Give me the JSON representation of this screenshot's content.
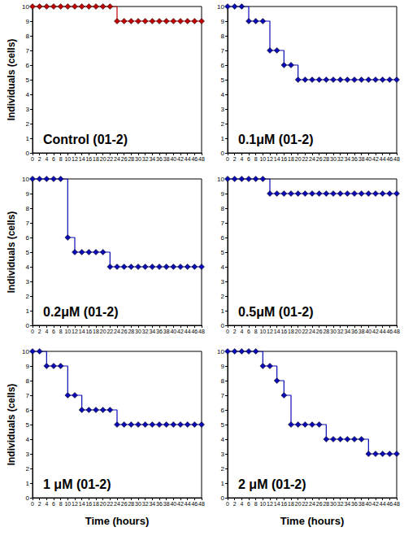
{
  "chart_data": [
    {
      "type": "line",
      "title": "Control (01-2)",
      "color": "#c00000",
      "marker": "diamond",
      "line_style": "step",
      "grid": false,
      "x": [
        0,
        2,
        4,
        6,
        8,
        10,
        12,
        14,
        16,
        18,
        20,
        22,
        24,
        26,
        28,
        30,
        32,
        34,
        36,
        38,
        40,
        42,
        44,
        46,
        48
      ],
      "values": [
        10,
        10,
        10,
        10,
        10,
        10,
        10,
        10,
        10,
        10,
        10,
        10,
        9,
        9,
        9,
        9,
        9,
        9,
        9,
        9,
        9,
        9,
        9,
        9,
        9
      ],
      "xlim": [
        0,
        48
      ],
      "xticks": [
        0,
        2,
        4,
        6,
        8,
        10,
        12,
        14,
        16,
        18,
        20,
        22,
        24,
        26,
        28,
        30,
        32,
        34,
        36,
        38,
        40,
        42,
        44,
        46,
        48
      ],
      "ylim": [
        0,
        10
      ],
      "yticks": [
        0,
        1,
        2,
        3,
        4,
        5,
        6,
        7,
        8,
        9,
        10
      ],
      "ylabel": "Individuals (cells)"
    },
    {
      "type": "line",
      "title": "0.1μM (01-2)",
      "color": "#0a0ab4",
      "marker": "diamond",
      "line_style": "step",
      "grid": false,
      "x": [
        0,
        2,
        4,
        6,
        8,
        10,
        12,
        14,
        16,
        18,
        20,
        22,
        24,
        26,
        28,
        30,
        32,
        34,
        36,
        38,
        40,
        42,
        44,
        46,
        48
      ],
      "values": [
        10,
        10,
        10,
        9,
        9,
        9,
        7,
        7,
        6,
        6,
        5,
        5,
        5,
        5,
        5,
        5,
        5,
        5,
        5,
        5,
        5,
        5,
        5,
        5,
        5
      ],
      "xlim": [
        0,
        48
      ],
      "xticks": [
        0,
        2,
        4,
        6,
        8,
        10,
        12,
        14,
        16,
        18,
        20,
        22,
        24,
        26,
        28,
        30,
        32,
        34,
        36,
        38,
        40,
        42,
        44,
        46,
        48
      ],
      "ylim": [
        0,
        10
      ],
      "yticks": [
        0,
        1,
        2,
        3,
        4,
        5,
        6,
        7,
        8,
        9,
        10
      ]
    },
    {
      "type": "line",
      "title": "0.2μM (01-2)",
      "color": "#0a0ab4",
      "marker": "diamond",
      "line_style": "step",
      "grid": false,
      "x": [
        0,
        2,
        4,
        6,
        8,
        10,
        12,
        14,
        16,
        18,
        20,
        22,
        24,
        26,
        28,
        30,
        32,
        34,
        36,
        38,
        40,
        42,
        44,
        46,
        48
      ],
      "values": [
        10,
        10,
        10,
        10,
        10,
        6,
        5,
        5,
        5,
        5,
        5,
        4,
        4,
        4,
        4,
        4,
        4,
        4,
        4,
        4,
        4,
        4,
        4,
        4,
        4
      ],
      "xlim": [
        0,
        48
      ],
      "xticks": [
        0,
        2,
        4,
        6,
        8,
        10,
        12,
        14,
        16,
        18,
        20,
        22,
        24,
        26,
        28,
        30,
        32,
        34,
        36,
        38,
        40,
        42,
        44,
        46,
        48
      ],
      "ylim": [
        0,
        10
      ],
      "yticks": [
        0,
        1,
        2,
        3,
        4,
        5,
        6,
        7,
        8,
        9,
        10
      ],
      "ylabel": "Individuals (cells)"
    },
    {
      "type": "line",
      "title": "0.5μM (01-2)",
      "color": "#0a0ab4",
      "marker": "diamond",
      "line_style": "step",
      "grid": false,
      "x": [
        0,
        2,
        4,
        6,
        8,
        10,
        12,
        14,
        16,
        18,
        20,
        22,
        24,
        26,
        28,
        30,
        32,
        34,
        36,
        38,
        40,
        42,
        44,
        46,
        48
      ],
      "values": [
        10,
        10,
        10,
        10,
        10,
        10,
        9,
        9,
        9,
        9,
        9,
        9,
        9,
        9,
        9,
        9,
        9,
        9,
        9,
        9,
        9,
        9,
        9,
        9,
        9
      ],
      "xlim": [
        0,
        48
      ],
      "xticks": [
        0,
        2,
        4,
        6,
        8,
        10,
        12,
        14,
        16,
        18,
        20,
        22,
        24,
        26,
        28,
        30,
        32,
        34,
        36,
        38,
        40,
        42,
        44,
        46,
        48
      ],
      "ylim": [
        0,
        10
      ],
      "yticks": [
        0,
        1,
        2,
        3,
        4,
        5,
        6,
        7,
        8,
        9,
        10
      ]
    },
    {
      "type": "line",
      "title": "1 μM (01-2)",
      "color": "#0a0ab4",
      "marker": "diamond",
      "line_style": "step",
      "grid": false,
      "x": [
        0,
        2,
        4,
        6,
        8,
        10,
        12,
        14,
        16,
        18,
        20,
        22,
        24,
        26,
        28,
        30,
        32,
        34,
        36,
        38,
        40,
        42,
        44,
        46,
        48
      ],
      "values": [
        10,
        10,
        9,
        9,
        9,
        7,
        7,
        6,
        6,
        6,
        6,
        6,
        5,
        5,
        5,
        5,
        5,
        5,
        5,
        5,
        5,
        5,
        5,
        5,
        5
      ],
      "xlim": [
        0,
        48
      ],
      "xticks": [
        0,
        2,
        4,
        6,
        8,
        10,
        12,
        14,
        16,
        18,
        20,
        22,
        24,
        26,
        28,
        30,
        32,
        34,
        36,
        38,
        40,
        42,
        44,
        46,
        48
      ],
      "ylim": [
        0,
        10
      ],
      "yticks": [
        0,
        1,
        2,
        3,
        4,
        5,
        6,
        7,
        8,
        9,
        10
      ],
      "ylabel": "Individuals (cells)",
      "xlabel": "Time (hours)"
    },
    {
      "type": "line",
      "title": "2 μM (01-2)",
      "color": "#0a0ab4",
      "marker": "diamond",
      "line_style": "step",
      "grid": false,
      "x": [
        0,
        2,
        4,
        6,
        8,
        10,
        12,
        14,
        16,
        18,
        20,
        22,
        24,
        26,
        28,
        30,
        32,
        34,
        36,
        38,
        40,
        42,
        44,
        46,
        48
      ],
      "values": [
        10,
        10,
        10,
        10,
        10,
        9,
        9,
        8,
        7,
        5,
        5,
        5,
        5,
        5,
        4,
        4,
        4,
        4,
        4,
        4,
        3,
        3,
        3,
        3,
        3
      ],
      "xlim": [
        0,
        48
      ],
      "xticks": [
        0,
        2,
        4,
        6,
        8,
        10,
        12,
        14,
        16,
        18,
        20,
        22,
        24,
        26,
        28,
        30,
        32,
        34,
        36,
        38,
        40,
        42,
        44,
        46,
        48
      ],
      "ylim": [
        0,
        10
      ],
      "yticks": [
        0,
        1,
        2,
        3,
        4,
        5,
        6,
        7,
        8,
        9,
        10
      ],
      "xlabel": "Time (hours)"
    }
  ]
}
